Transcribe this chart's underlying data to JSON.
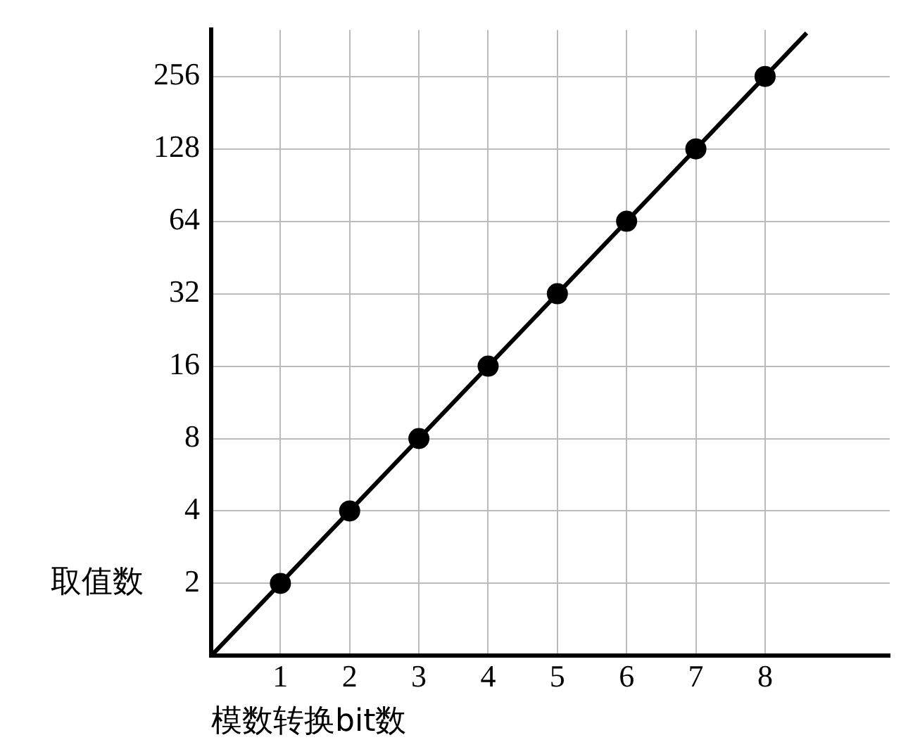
{
  "chart_data": {
    "type": "scatter",
    "xlabel": "模数转换bit数",
    "ylabel": "取值数",
    "log": "y",
    "grid": true,
    "legend": false,
    "xlim": [
      0,
      9.8
    ],
    "xticks": [
      1,
      2,
      3,
      4,
      5,
      6,
      7,
      8
    ],
    "ylim": [
      1,
      400
    ],
    "yticks": [
      2,
      4,
      8,
      16,
      32,
      64,
      128,
      256
    ],
    "series": [
      {
        "color": "#000000",
        "marker": "circle",
        "x": [
          1,
          2,
          3,
          4,
          5,
          6,
          7,
          8
        ],
        "values": [
          2,
          4,
          8,
          16,
          32,
          64,
          128,
          256
        ]
      },
      {
        "type": "line",
        "color": "#000000",
        "marker": "none",
        "x": [
          0,
          8.6
        ],
        "values": [
          1,
          388
        ]
      }
    ]
  }
}
